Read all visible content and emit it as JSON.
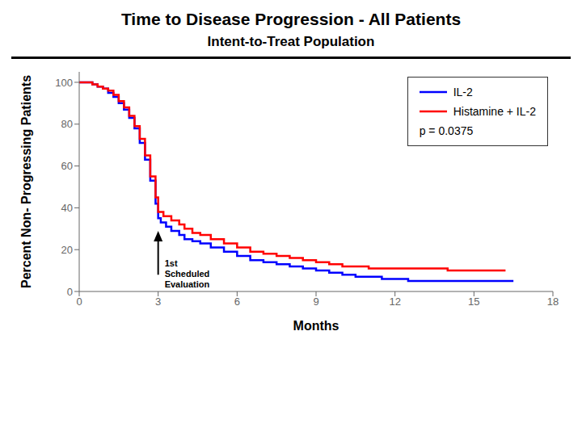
{
  "chart_data": {
    "type": "step",
    "title": "Time to Disease Progression - All Patients",
    "subtitle": "Intent-to-Treat Population",
    "xlabel": "Months",
    "ylabel": "Percent Non- Progressing Patients",
    "xlim": [
      0,
      18
    ],
    "ylim": [
      0,
      105
    ],
    "xticks": [
      0,
      3,
      6,
      9,
      12,
      15,
      18
    ],
    "yticks": [
      0,
      20,
      40,
      60,
      80,
      100
    ],
    "grid": false,
    "legend": "upper right",
    "series": [
      {
        "name": "IL-2",
        "color": "#0000FF",
        "x": [
          0,
          0.3,
          0.5,
          0.7,
          0.9,
          1.1,
          1.3,
          1.5,
          1.7,
          1.9,
          2.1,
          2.3,
          2.5,
          2.7,
          2.9,
          3.0,
          3.1,
          3.3,
          3.5,
          3.8,
          4.0,
          4.3,
          4.6,
          5.0,
          5.5,
          6.0,
          6.5,
          7.0,
          7.5,
          8.0,
          8.5,
          9.0,
          9.5,
          10.0,
          10.5,
          11.0,
          11.5,
          12.0,
          12.5,
          13.0,
          13.5,
          14.0,
          16.5
        ],
        "values": [
          100,
          100,
          99,
          98,
          97,
          95,
          93,
          90,
          87,
          83,
          78,
          71,
          63,
          53,
          42,
          35,
          33,
          31,
          29,
          27,
          25,
          24,
          23,
          21,
          19,
          17,
          15,
          14,
          13,
          12,
          11,
          10,
          9,
          8,
          7,
          7,
          6,
          6,
          5,
          5,
          5,
          5,
          5
        ]
      },
      {
        "name": "Histamine + IL-2",
        "color": "#FF0000",
        "x": [
          0,
          0.3,
          0.5,
          0.7,
          0.9,
          1.1,
          1.3,
          1.5,
          1.7,
          1.9,
          2.1,
          2.3,
          2.5,
          2.7,
          2.9,
          3.0,
          3.2,
          3.5,
          3.8,
          4.0,
          4.3,
          4.6,
          5.0,
          5.5,
          6.0,
          6.5,
          7.0,
          7.5,
          8.0,
          8.5,
          9.0,
          9.5,
          10.0,
          11.0,
          11.5,
          12.0,
          13.0,
          14.0,
          15.0,
          15.5,
          16.2
        ],
        "values": [
          100,
          100,
          99,
          98,
          97,
          96,
          94,
          91,
          88,
          84,
          79,
          73,
          65,
          55,
          45,
          38,
          36,
          34,
          32,
          30,
          28,
          27,
          25,
          23,
          21,
          19,
          18,
          17,
          16,
          15,
          14,
          13,
          12,
          11,
          11,
          11,
          11,
          10,
          10,
          10,
          10
        ]
      }
    ],
    "annotations": [
      {
        "text": "p = 0.0375"
      },
      {
        "text": "1st\nScheduled\nEvaluation",
        "x": 3.0,
        "y": 29,
        "y_base": 8
      }
    ]
  }
}
